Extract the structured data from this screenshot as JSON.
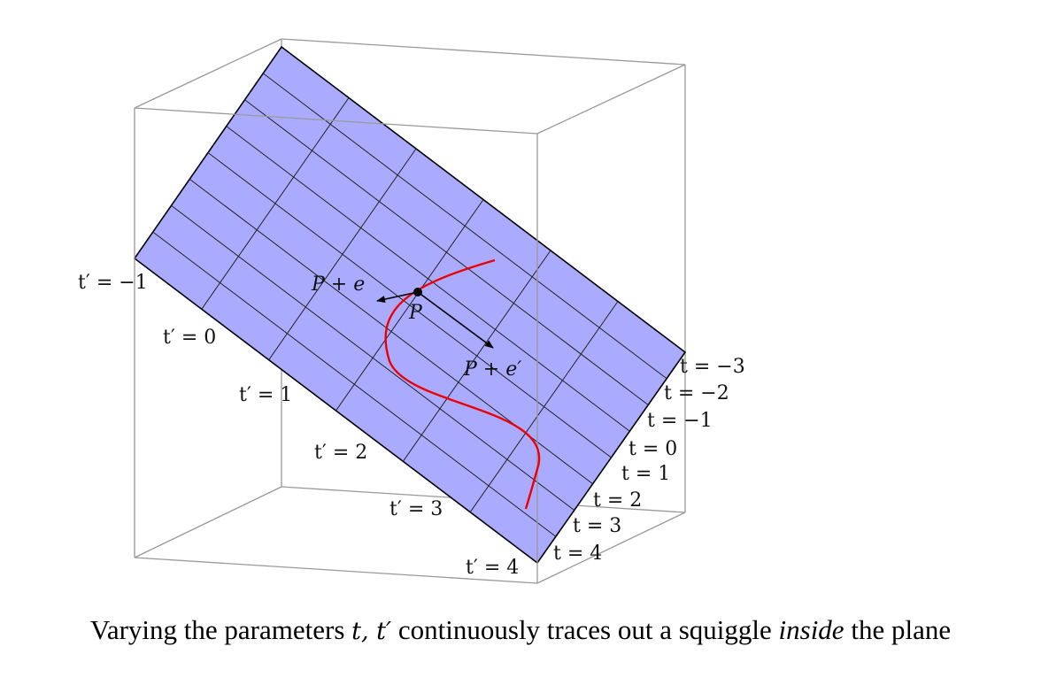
{
  "point": {
    "label": "P",
    "e_label": "P + e",
    "e_prime_label": "P + e′"
  },
  "t_labels": [
    "t = −3",
    "t = −2",
    "t = −1",
    "t = 0",
    "t = 1",
    "t = 2",
    "t = 3",
    "t = 4"
  ],
  "tp_labels": [
    "t′ = −1",
    "t′ = 0",
    "t′ = 1",
    "t′ = 2",
    "t′ = 3",
    "t′ = 4"
  ],
  "caption": {
    "pre": "Varying the parameters ",
    "math": "t, t′",
    "mid": " continuously traces out a squiggle ",
    "emph": "inside",
    "post": " the plane"
  },
  "colors": {
    "plane_fill": "#aaaaff",
    "squiggle": "#ee0000",
    "box": "#999999"
  }
}
